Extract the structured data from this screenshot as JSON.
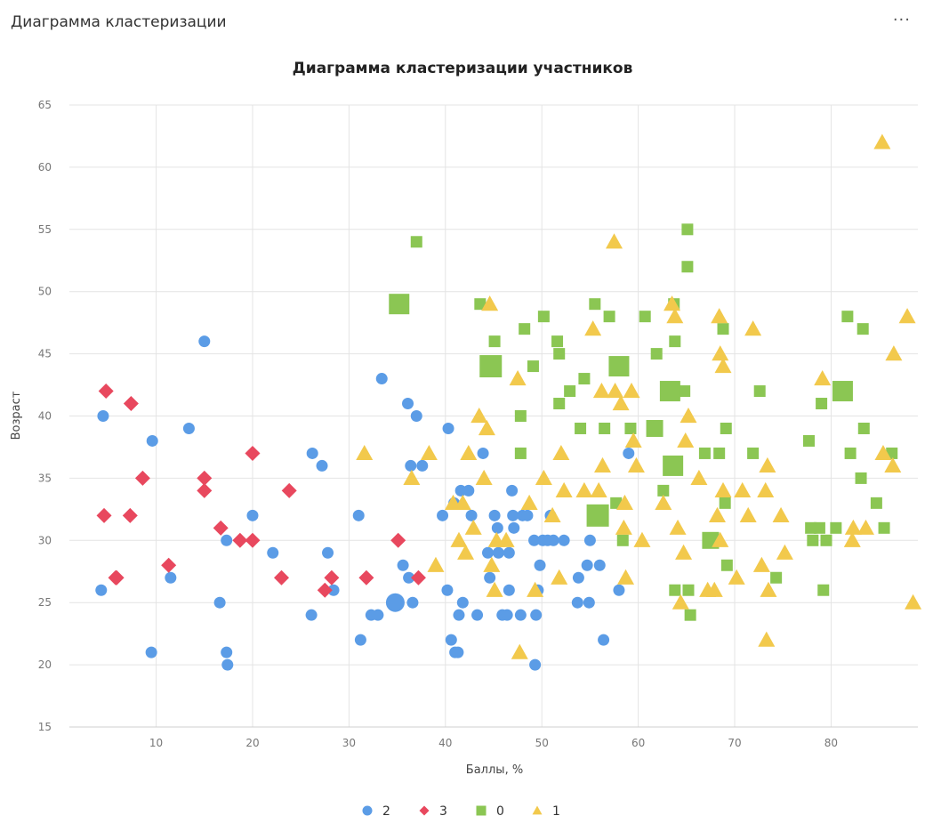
{
  "panel": {
    "title": "Диаграмма кластеризации",
    "menu_icon": "more-horizontal-icon",
    "menu_label": "···"
  },
  "chart_data": {
    "type": "scatter",
    "title": "Диаграмма кластеризации участников",
    "xlabel": "Баллы, %",
    "ylabel": "Возраст",
    "xlim": [
      1,
      89
    ],
    "ylim": [
      15,
      65
    ],
    "xticks": [
      10,
      20,
      30,
      40,
      50,
      60,
      70,
      80
    ],
    "yticks": [
      15,
      20,
      25,
      30,
      35,
      40,
      45,
      50,
      55,
      60,
      65
    ],
    "grid": true,
    "legend_position": "bottom",
    "series": [
      {
        "name": "2",
        "marker": "circle",
        "color": "#5b9ce6",
        "points": [
          [
            4.5,
            40
          ],
          [
            4.3,
            26
          ],
          [
            9.6,
            38
          ],
          [
            9.5,
            21
          ],
          [
            11.5,
            27
          ],
          [
            13.4,
            39
          ],
          [
            15,
            46
          ],
          [
            16.6,
            25
          ],
          [
            17.3,
            30
          ],
          [
            17.3,
            21
          ],
          [
            17.4,
            20
          ],
          [
            20,
            32
          ],
          [
            22.1,
            29
          ],
          [
            26.1,
            24
          ],
          [
            26.2,
            37
          ],
          [
            27.2,
            36
          ],
          [
            27.8,
            29
          ],
          [
            28.4,
            26
          ],
          [
            31,
            32
          ],
          [
            31.2,
            22
          ],
          [
            32.3,
            24
          ],
          [
            33,
            24
          ],
          [
            33.4,
            43
          ],
          [
            34.8,
            25
          ],
          [
            35.6,
            28
          ],
          [
            36.1,
            41
          ],
          [
            36.2,
            27
          ],
          [
            36.4,
            36
          ],
          [
            36.6,
            25
          ],
          [
            37,
            40
          ],
          [
            37.6,
            36
          ],
          [
            39.7,
            32
          ],
          [
            40.2,
            26
          ],
          [
            40.3,
            39
          ],
          [
            40.6,
            22
          ],
          [
            40.9,
            33
          ],
          [
            41,
            21
          ],
          [
            41.3,
            21
          ],
          [
            41.4,
            24
          ],
          [
            41.6,
            34
          ],
          [
            41.8,
            25
          ],
          [
            42.4,
            34
          ],
          [
            42.7,
            32
          ],
          [
            43.3,
            24
          ],
          [
            43.9,
            37
          ],
          [
            44.4,
            29
          ],
          [
            44.6,
            27
          ],
          [
            45.1,
            32
          ],
          [
            45.4,
            31
          ],
          [
            45.5,
            29
          ],
          [
            45.9,
            24
          ],
          [
            46.4,
            24
          ],
          [
            46.6,
            29
          ],
          [
            46.6,
            26
          ],
          [
            46.9,
            34
          ],
          [
            47,
            32
          ],
          [
            47.1,
            31
          ],
          [
            47.8,
            24
          ],
          [
            48,
            32
          ],
          [
            48.5,
            32
          ],
          [
            49.2,
            30
          ],
          [
            49.3,
            20
          ],
          [
            49.4,
            24
          ],
          [
            49.6,
            26
          ],
          [
            49.8,
            28
          ],
          [
            50.1,
            30
          ],
          [
            50.6,
            30
          ],
          [
            50.9,
            32
          ],
          [
            51.2,
            30
          ],
          [
            52.3,
            30
          ],
          [
            53.7,
            25
          ],
          [
            53.8,
            27
          ],
          [
            54.7,
            28
          ],
          [
            54.9,
            25
          ],
          [
            55,
            30
          ],
          [
            56,
            28
          ],
          [
            56.4,
            22
          ],
          [
            58,
            26
          ],
          [
            59,
            37
          ]
        ],
        "sizes": [
          12,
          12,
          12,
          12,
          12,
          12,
          12,
          12,
          12,
          12,
          12,
          12,
          12,
          12,
          12,
          12,
          12,
          12,
          12,
          12,
          12,
          12,
          12,
          20,
          12,
          12,
          12,
          12,
          12,
          12,
          12,
          12,
          12,
          12,
          12,
          12,
          12,
          12,
          12,
          12,
          12,
          12,
          12,
          12,
          12,
          12,
          12,
          12,
          12,
          12,
          12,
          12,
          12,
          12,
          12,
          12,
          12,
          12,
          12,
          12,
          12,
          12,
          12,
          12,
          12,
          12,
          12,
          12,
          12,
          12,
          12,
          12,
          12,
          12,
          12,
          12,
          12,
          12,
          12
        ]
      },
      {
        "name": "3",
        "marker": "diamond",
        "color": "#e8485e",
        "points": [
          [
            4.6,
            32
          ],
          [
            4.8,
            42
          ],
          [
            5.8,
            27
          ],
          [
            5.9,
            27
          ],
          [
            7.3,
            32
          ],
          [
            7.4,
            41
          ],
          [
            8.6,
            35
          ],
          [
            11.3,
            28
          ],
          [
            15,
            35
          ],
          [
            15,
            34
          ],
          [
            16.7,
            31
          ],
          [
            18.7,
            30
          ],
          [
            20,
            37
          ],
          [
            20,
            30
          ],
          [
            23,
            27
          ],
          [
            23.8,
            34
          ],
          [
            27.5,
            26
          ],
          [
            28.2,
            27
          ],
          [
            31.8,
            27
          ],
          [
            35.1,
            30
          ],
          [
            37.2,
            27
          ]
        ]
      },
      {
        "name": "0",
        "marker": "square",
        "color": "#8bc653",
        "points": [
          [
            35.2,
            49
          ],
          [
            37,
            54
          ],
          [
            44.7,
            44
          ],
          [
            43.6,
            49
          ],
          [
            45.1,
            46
          ],
          [
            47.8,
            40
          ],
          [
            47.8,
            37
          ],
          [
            48.2,
            47
          ],
          [
            49.1,
            44
          ],
          [
            50.2,
            48
          ],
          [
            51.6,
            46
          ],
          [
            51.8,
            45
          ],
          [
            51.8,
            41
          ],
          [
            52.9,
            42
          ],
          [
            54,
            39
          ],
          [
            54.4,
            43
          ],
          [
            55.5,
            49
          ],
          [
            55.8,
            32
          ],
          [
            56.5,
            39
          ],
          [
            57,
            48
          ],
          [
            57.7,
            33
          ],
          [
            58,
            44
          ],
          [
            58.4,
            30
          ],
          [
            59.2,
            39
          ],
          [
            60.7,
            48
          ],
          [
            61.7,
            39
          ],
          [
            61.9,
            45
          ],
          [
            62.6,
            34
          ],
          [
            63.3,
            42
          ],
          [
            63.6,
            36
          ],
          [
            63.7,
            49
          ],
          [
            63.8,
            46
          ],
          [
            63.8,
            26
          ],
          [
            64.8,
            42
          ],
          [
            65.1,
            55
          ],
          [
            65.1,
            52
          ],
          [
            65.2,
            26
          ],
          [
            65.4,
            24
          ],
          [
            66.9,
            37
          ],
          [
            67.5,
            30
          ],
          [
            68.4,
            37
          ],
          [
            68.8,
            47
          ],
          [
            69,
            33
          ],
          [
            69.1,
            39
          ],
          [
            69.2,
            28
          ],
          [
            71.9,
            37
          ],
          [
            72.6,
            42
          ],
          [
            74.3,
            27
          ],
          [
            77.7,
            38
          ],
          [
            77.9,
            31
          ],
          [
            78.1,
            30
          ],
          [
            78.8,
            31
          ],
          [
            79,
            41
          ],
          [
            79.2,
            26
          ],
          [
            79.5,
            30
          ],
          [
            80.5,
            31
          ],
          [
            81.2,
            42
          ],
          [
            81.7,
            48
          ],
          [
            82,
            37
          ],
          [
            83.3,
            47
          ],
          [
            83.4,
            39
          ],
          [
            83.1,
            35
          ],
          [
            84.7,
            33
          ],
          [
            85.5,
            31
          ],
          [
            86.3,
            37
          ]
        ],
        "sizes": [
          22,
          12,
          24,
          12,
          12,
          12,
          12,
          12,
          12,
          12,
          12,
          12,
          12,
          12,
          12,
          12,
          12,
          24,
          12,
          12,
          12,
          22,
          12,
          12,
          12,
          18,
          12,
          12,
          22,
          22,
          12,
          12,
          12,
          12,
          12,
          12,
          12,
          12,
          12,
          18,
          12,
          12,
          12,
          12,
          12,
          12,
          12,
          12,
          12,
          12,
          12,
          12,
          12,
          12,
          12,
          12,
          22,
          12,
          12,
          12,
          12,
          12,
          12,
          12,
          12
        ]
      },
      {
        "name": "1",
        "marker": "triangle",
        "color": "#f2c94c",
        "points": [
          [
            31.6,
            37
          ],
          [
            36.5,
            35
          ],
          [
            38.3,
            37
          ],
          [
            39,
            28
          ],
          [
            40.8,
            33
          ],
          [
            41.4,
            30
          ],
          [
            41.8,
            33
          ],
          [
            42.1,
            29
          ],
          [
            42.4,
            37
          ],
          [
            42.9,
            31
          ],
          [
            43.5,
            40
          ],
          [
            44,
            35
          ],
          [
            44.3,
            39
          ],
          [
            44.6,
            49
          ],
          [
            44.8,
            28
          ],
          [
            45.1,
            26
          ],
          [
            45.3,
            30
          ],
          [
            46.3,
            30
          ],
          [
            47.5,
            43
          ],
          [
            47.7,
            21
          ],
          [
            48.7,
            33
          ],
          [
            49.3,
            26
          ],
          [
            50.2,
            35
          ],
          [
            51.1,
            32
          ],
          [
            51.8,
            27
          ],
          [
            52,
            37
          ],
          [
            52.3,
            34
          ],
          [
            54.4,
            34
          ],
          [
            55.3,
            47
          ],
          [
            55.9,
            34
          ],
          [
            56.2,
            42
          ],
          [
            56.3,
            36
          ],
          [
            57.5,
            54
          ],
          [
            57.6,
            42
          ],
          [
            58.2,
            41
          ],
          [
            58.5,
            31
          ],
          [
            58.7,
            27
          ],
          [
            58.6,
            33
          ],
          [
            59.3,
            42
          ],
          [
            59.5,
            38
          ],
          [
            59.8,
            36
          ],
          [
            60.4,
            30
          ],
          [
            62.6,
            33
          ],
          [
            63.5,
            49
          ],
          [
            63.8,
            48
          ],
          [
            64.1,
            31
          ],
          [
            64.4,
            25
          ],
          [
            64.7,
            29
          ],
          [
            64.9,
            38
          ],
          [
            65.2,
            40
          ],
          [
            66.3,
            35
          ],
          [
            67.2,
            26
          ],
          [
            67.9,
            26
          ],
          [
            68.4,
            48
          ],
          [
            68.5,
            45
          ],
          [
            68.8,
            44
          ],
          [
            68.2,
            32
          ],
          [
            68.5,
            30
          ],
          [
            68.8,
            34
          ],
          [
            70.2,
            27
          ],
          [
            70.8,
            34
          ],
          [
            71.4,
            32
          ],
          [
            71.9,
            47
          ],
          [
            72.8,
            28
          ],
          [
            73.2,
            34
          ],
          [
            73.3,
            22
          ],
          [
            73.4,
            36
          ],
          [
            73.5,
            26
          ],
          [
            74.8,
            32
          ],
          [
            75.2,
            29
          ],
          [
            79.1,
            43
          ],
          [
            82.2,
            30
          ],
          [
            82.3,
            31
          ],
          [
            83.6,
            31
          ],
          [
            85.3,
            62
          ],
          [
            85.4,
            37
          ],
          [
            86.5,
            45
          ],
          [
            86.4,
            36
          ],
          [
            87.9,
            48
          ],
          [
            88.5,
            25
          ]
        ]
      }
    ]
  }
}
